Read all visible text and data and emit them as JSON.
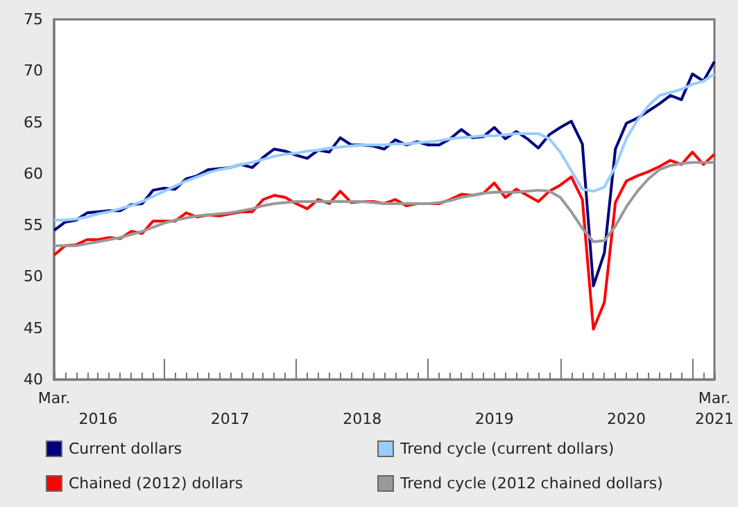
{
  "chart_data": {
    "type": "line",
    "categories": [
      "Mar.",
      null,
      null,
      null,
      "2016",
      null,
      null,
      null,
      null,
      null,
      null,
      null,
      null,
      null,
      null,
      null,
      "2017",
      null,
      null,
      null,
      null,
      null,
      null,
      null,
      null,
      null,
      null,
      null,
      "2018",
      null,
      null,
      null,
      null,
      null,
      null,
      null,
      null,
      null,
      null,
      null,
      "2019",
      null,
      null,
      null,
      null,
      null,
      null,
      null,
      null,
      null,
      null,
      null,
      "2020",
      null,
      null,
      null,
      null,
      null,
      null,
      null,
      "Mar. 2021"
    ],
    "series": [
      {
        "name": "Current dollars",
        "color": "#000080",
        "values": [
          54.5,
          55.3,
          55.5,
          56.2,
          56.3,
          56.4,
          56.4,
          57.0,
          57.1,
          58.4,
          58.6,
          58.5,
          59.5,
          59.8,
          60.4,
          60.5,
          60.6,
          60.9,
          60.6,
          61.6,
          62.4,
          62.2,
          61.8,
          61.5,
          62.3,
          62.1,
          63.5,
          62.8,
          62.8,
          62.7,
          62.4,
          63.3,
          62.8,
          63.1,
          62.8,
          62.8,
          63.4,
          64.3,
          63.5,
          63.6,
          64.5,
          63.4,
          64.1,
          63.4,
          62.5,
          63.8,
          64.5,
          65.1,
          62.9,
          49.1,
          52.3,
          62.4,
          64.9,
          65.4,
          66.1,
          66.8,
          67.6,
          67.2,
          69.7,
          69.0,
          70.9
        ]
      },
      {
        "name": "Trend cycle (current dollars)",
        "color": "#99ccff",
        "values": [
          55.5,
          55.5,
          55.6,
          55.8,
          56.1,
          56.3,
          56.6,
          56.9,
          57.3,
          57.8,
          58.3,
          58.8,
          59.3,
          59.7,
          60.1,
          60.4,
          60.6,
          60.9,
          61.1,
          61.4,
          61.7,
          61.9,
          62.0,
          62.2,
          62.3,
          62.5,
          62.6,
          62.7,
          62.8,
          62.8,
          62.8,
          62.9,
          62.9,
          63.0,
          63.1,
          63.2,
          63.4,
          63.5,
          63.6,
          63.7,
          63.7,
          63.8,
          63.9,
          63.9,
          63.9,
          63.4,
          62.1,
          60.3,
          58.5,
          58.3,
          58.7,
          60.7,
          63.4,
          65.2,
          66.6,
          67.6,
          67.9,
          68.2,
          68.7,
          69.0,
          69.7
        ]
      },
      {
        "name": "Chained (2012) dollars",
        "color": "#ff0000",
        "values": [
          52.1,
          53.0,
          53.1,
          53.6,
          53.6,
          53.8,
          53.7,
          54.4,
          54.2,
          55.4,
          55.4,
          55.4,
          56.2,
          55.8,
          56.0,
          55.9,
          56.1,
          56.3,
          56.3,
          57.5,
          57.9,
          57.7,
          57.1,
          56.6,
          57.5,
          57.1,
          58.3,
          57.2,
          57.3,
          57.3,
          57.1,
          57.5,
          56.9,
          57.1,
          57.1,
          57.1,
          57.5,
          58.0,
          57.9,
          58.1,
          59.1,
          57.7,
          58.5,
          57.9,
          57.3,
          58.3,
          58.9,
          59.7,
          57.5,
          44.9,
          47.5,
          57.2,
          59.3,
          59.8,
          60.2,
          60.7,
          61.3,
          60.9,
          62.1,
          60.9,
          61.9
        ]
      },
      {
        "name": "Trend cycle (2012 chained dollars)",
        "color": "#999999",
        "values": [
          53.0,
          53.0,
          53.0,
          53.2,
          53.4,
          53.6,
          53.8,
          54.1,
          54.4,
          54.8,
          55.2,
          55.5,
          55.7,
          55.9,
          56.0,
          56.1,
          56.2,
          56.4,
          56.6,
          56.9,
          57.1,
          57.2,
          57.3,
          57.3,
          57.3,
          57.3,
          57.3,
          57.3,
          57.3,
          57.2,
          57.1,
          57.1,
          57.1,
          57.1,
          57.1,
          57.2,
          57.4,
          57.7,
          57.9,
          58.1,
          58.2,
          58.2,
          58.2,
          58.3,
          58.4,
          58.3,
          57.7,
          56.3,
          54.7,
          53.4,
          53.5,
          54.9,
          56.8,
          58.3,
          59.5,
          60.4,
          60.8,
          61.0,
          61.1,
          61.1,
          61.1
        ]
      }
    ],
    "ylim": [
      40,
      75
    ],
    "yticks": [
      40,
      45,
      50,
      55,
      60,
      65,
      70,
      75
    ],
    "grid": false,
    "legend": "bottom",
    "marker": "none",
    "line_style": "solid"
  }
}
